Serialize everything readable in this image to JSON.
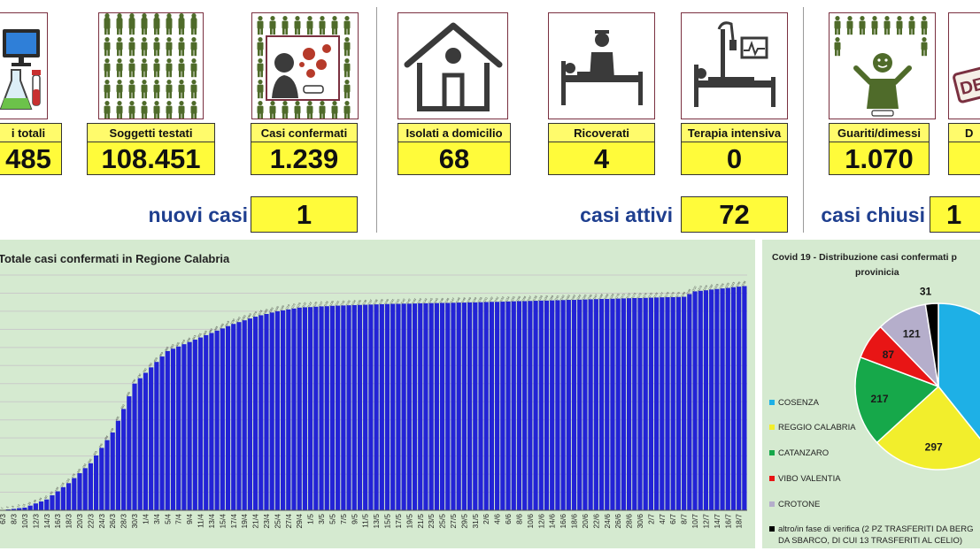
{
  "kpis": [
    {
      "label": "Casi totali",
      "value": "485",
      "icon": "lab-computer-icon",
      "shown_label": "i totali",
      "shown_value": "485"
    },
    {
      "label": "Soggetti testati",
      "value": "108.451",
      "icon": "people-grid-icon"
    },
    {
      "label": "Casi confermati",
      "value": "1.239",
      "icon": "virus-person-icon"
    },
    {
      "label": "Isolati a domicilio",
      "value": "68",
      "icon": "house-icon"
    },
    {
      "label": "Ricoverati",
      "value": "4",
      "icon": "hospital-bed-icon"
    },
    {
      "label": "Terapia intensiva",
      "value": "0",
      "icon": "icu-bed-icon"
    },
    {
      "label": "Guariti/dimessi",
      "value": "1.070",
      "icon": "recovered-person-icon"
    },
    {
      "label": "D",
      "value": "",
      "icon": "deceased-stamp-icon"
    }
  ],
  "summary": {
    "nuovi_label": "nuovi casi",
    "nuovi_value": "1",
    "attivi_label": "casi attivi",
    "attivi_value": "72",
    "chiusi_label": "casi chiusi",
    "chiusi_value": "1"
  },
  "stamp_text": "DE",
  "colors": {
    "bar": "#2323d6",
    "chart_bg": "#d5ead0",
    "label_yellow": "#fffb6b",
    "value_yellow": "#fffb3a",
    "summary_blue": "#1f3f8f",
    "icon_border": "#7a3040",
    "icon_green": "#4f6b2a",
    "virus_red": "#b63a2a"
  },
  "chart_data": [
    {
      "type": "bar",
      "title": "Totale casi confermati in Regione Calabria",
      "x_tick_labels": [
        "6/3",
        "8/3",
        "10/3",
        "12/3",
        "14/3",
        "16/3",
        "18/3",
        "20/3",
        "22/3",
        "24/3",
        "26/3",
        "28/3",
        "30/3",
        "1/4",
        "3/4",
        "5/4",
        "7/4",
        "9/4",
        "11/4",
        "13/4",
        "15/4",
        "17/4",
        "19/4",
        "21/4",
        "23/4",
        "25/4",
        "27/4",
        "29/4",
        "1/5",
        "3/5",
        "5/5",
        "7/5",
        "9/5",
        "11/5",
        "13/5",
        "15/5",
        "17/5",
        "19/5",
        "21/5",
        "23/5",
        "25/5",
        "27/5",
        "29/5",
        "31/5",
        "2/6",
        "4/6",
        "6/6",
        "8/6",
        "10/6",
        "12/6",
        "14/6",
        "16/6",
        "18/6",
        "20/6",
        "22/6",
        "24/6",
        "26/6",
        "28/6",
        "30/6",
        "2/7",
        "4/7",
        "6/7",
        "8/7",
        "10/7",
        "12/7",
        "14/7",
        "16/7",
        "18/7"
      ],
      "x_range": [
        "6/3",
        "19/7"
      ],
      "y_range": [
        0,
        1300
      ],
      "start_value": 1,
      "end_value": 1239,
      "curve_points": [
        {
          "x": "6/3",
          "y": 1
        },
        {
          "x": "10/3",
          "y": 15
        },
        {
          "x": "14/3",
          "y": 60
        },
        {
          "x": "18/3",
          "y": 150
        },
        {
          "x": "22/3",
          "y": 260
        },
        {
          "x": "26/3",
          "y": 430
        },
        {
          "x": "28/3",
          "y": 560
        },
        {
          "x": "30/3",
          "y": 700
        },
        {
          "x": "1/4",
          "y": 760
        },
        {
          "x": "3/4",
          "y": 820
        },
        {
          "x": "5/4",
          "y": 880
        },
        {
          "x": "9/4",
          "y": 930
        },
        {
          "x": "13/4",
          "y": 980
        },
        {
          "x": "17/4",
          "y": 1030
        },
        {
          "x": "21/4",
          "y": 1070
        },
        {
          "x": "25/4",
          "y": 1100
        },
        {
          "x": "29/4",
          "y": 1120
        },
        {
          "x": "5/5",
          "y": 1130
        },
        {
          "x": "15/5",
          "y": 1140
        },
        {
          "x": "1/6",
          "y": 1150
        },
        {
          "x": "20/6",
          "y": 1165
        },
        {
          "x": "8/7",
          "y": 1180
        },
        {
          "x": "10/7",
          "y": 1210
        },
        {
          "x": "19/7",
          "y": 1239
        }
      ],
      "grid": true
    },
    {
      "type": "pie",
      "title": "Covid 19 - Distribuzione casi confermati p",
      "subtitle": "provinicia",
      "slices": [
        {
          "name": "COSENZA",
          "value": 487,
          "color": "#1eb0e6"
        },
        {
          "name": "REGGIO CALABRIA",
          "value": 297,
          "color": "#f2ee2c"
        },
        {
          "name": "CATANZARO",
          "value": 217,
          "color": "#16a84a"
        },
        {
          "name": "VIBO VALENTIA",
          "value": 87,
          "color": "#e81515"
        },
        {
          "name": "CROTONE",
          "value": 121,
          "color": "#b5aecb"
        },
        {
          "name": "altro/in fase di verifica (2 PZ TRASFERITI DA BERG",
          "value": 31,
          "color": "#000000"
        }
      ],
      "legend_extra_line": "DA SBARCO, DI CUI 13 TRASFERITI AL CELIO)",
      "legend_position": "left"
    }
  ]
}
